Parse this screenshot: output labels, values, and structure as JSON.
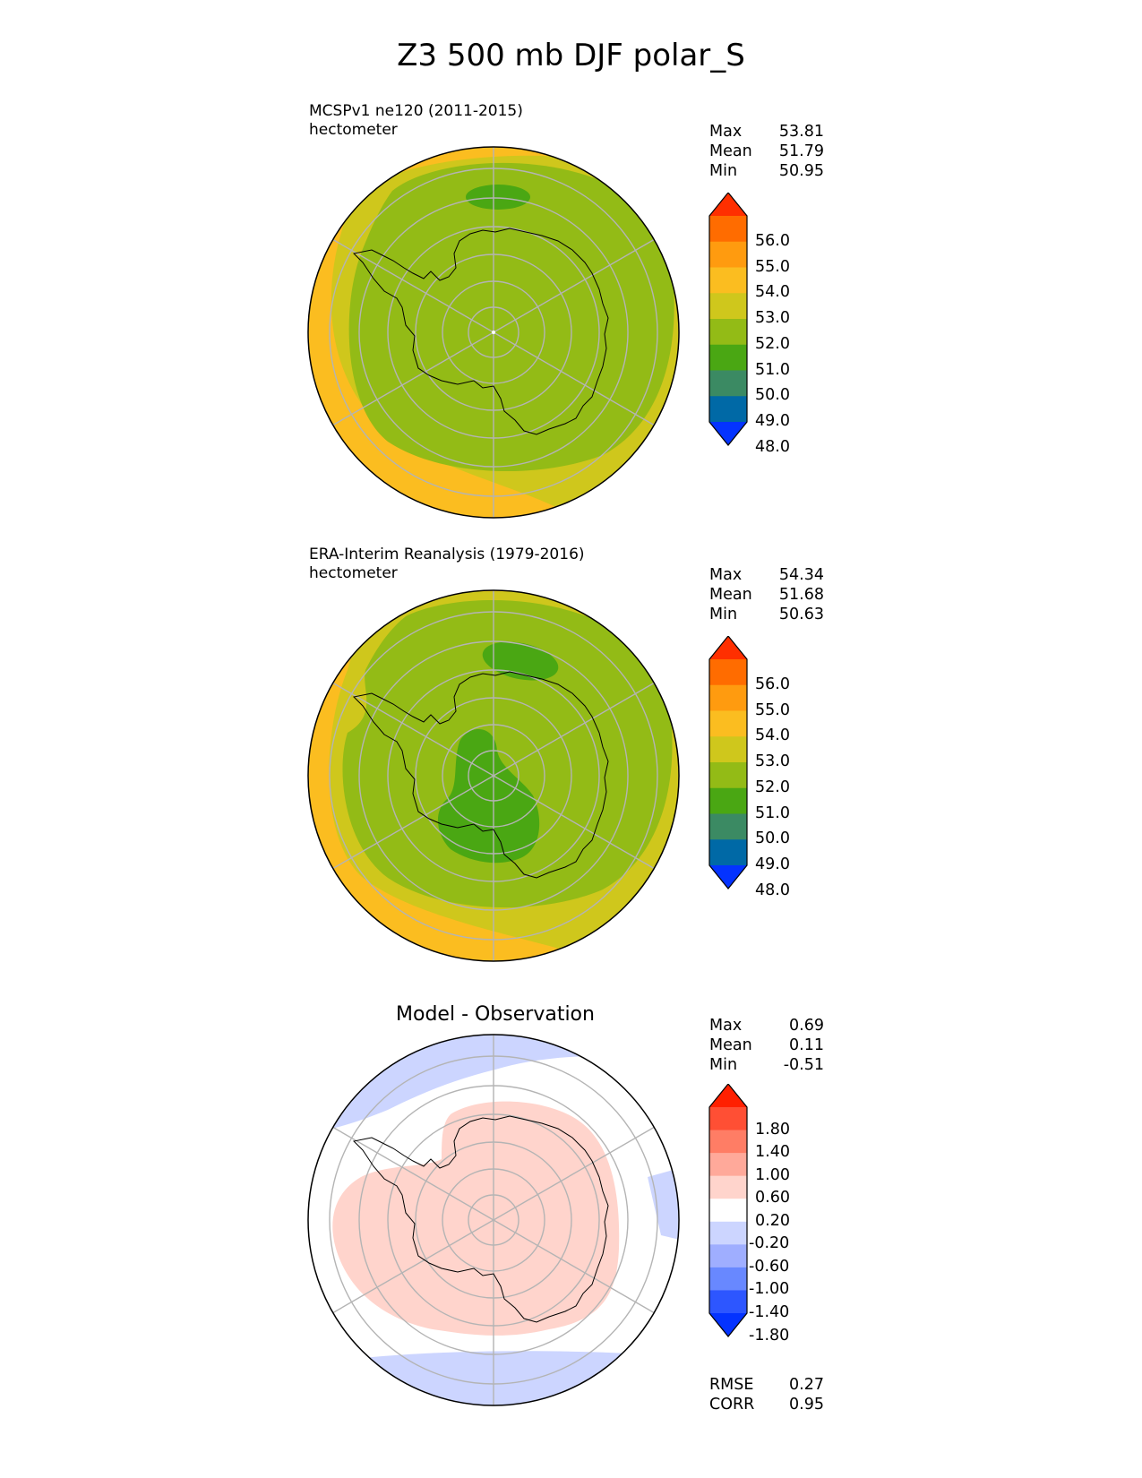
{
  "title": "Z3 500 mb DJF polar_S",
  "panels": [
    {
      "title_line1": "MCSPv1 ne120 (2011-2015)",
      "title_line2": "hectometer",
      "stats": [
        [
          "Max",
          "53.81"
        ],
        [
          "Mean",
          "51.79"
        ],
        [
          "Min",
          "50.95"
        ]
      ],
      "colorbar_labels": [
        "56.0",
        "55.0",
        "54.0",
        "53.0",
        "52.0",
        "51.0",
        "50.0",
        "49.0",
        "48.0"
      ]
    },
    {
      "title_line1": "ERA-Interim Reanalysis (1979-2016)",
      "title_line2": "hectometer",
      "stats": [
        [
          "Max",
          "54.34"
        ],
        [
          "Mean",
          "51.68"
        ],
        [
          "Min",
          "50.63"
        ]
      ],
      "colorbar_labels": [
        "56.0",
        "55.0",
        "54.0",
        "53.0",
        "52.0",
        "51.0",
        "50.0",
        "49.0",
        "48.0"
      ]
    },
    {
      "title": "Model - Observation",
      "stats": [
        [
          "Max",
          "0.69"
        ],
        [
          "Mean",
          "0.11"
        ],
        [
          "Min",
          "-0.51"
        ]
      ],
      "colorbar_labels": [
        "1.80",
        "1.40",
        "1.00",
        "0.60",
        "0.20",
        "-0.20",
        "-0.60",
        "-1.00",
        "-1.40",
        "-1.80"
      ],
      "metrics": [
        [
          "RMSE",
          "0.27"
        ],
        [
          "CORR",
          "0.95"
        ]
      ]
    }
  ],
  "colors": {
    "field": [
      "#0433ff",
      "#0069a6",
      "#3b8a63",
      "#4aa713",
      "#93bb16",
      "#cfc71c",
      "#fbbd20",
      "#ff9b0f",
      "#ff6c00",
      "#ff2f00"
    ],
    "diff": [
      "#0433ff",
      "#2d56ff",
      "#6888ff",
      "#9faeff",
      "#ccd5ff",
      "#ffffff",
      "#ffd4cc",
      "#ffa99a",
      "#ff7d65",
      "#ff4f34",
      "#ff2000"
    ]
  }
}
